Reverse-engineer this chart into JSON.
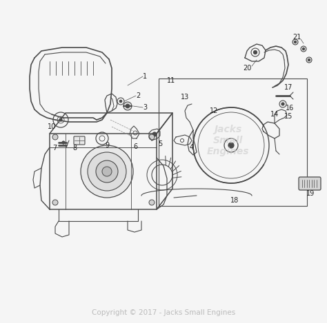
{
  "background_color": "#f5f5f5",
  "copyright_text": "Copyright © 2017 - Jacks Small Engines",
  "copyright_color": "#bbbbbb",
  "copyright_fontsize": 7.5,
  "part_label_color": "#222222",
  "part_label_fontsize": 7,
  "line_color": "#4a4a4a",
  "line_width": 0.9,
  "watermark_color": "#cccccc",
  "watermark_fontsize": 10
}
